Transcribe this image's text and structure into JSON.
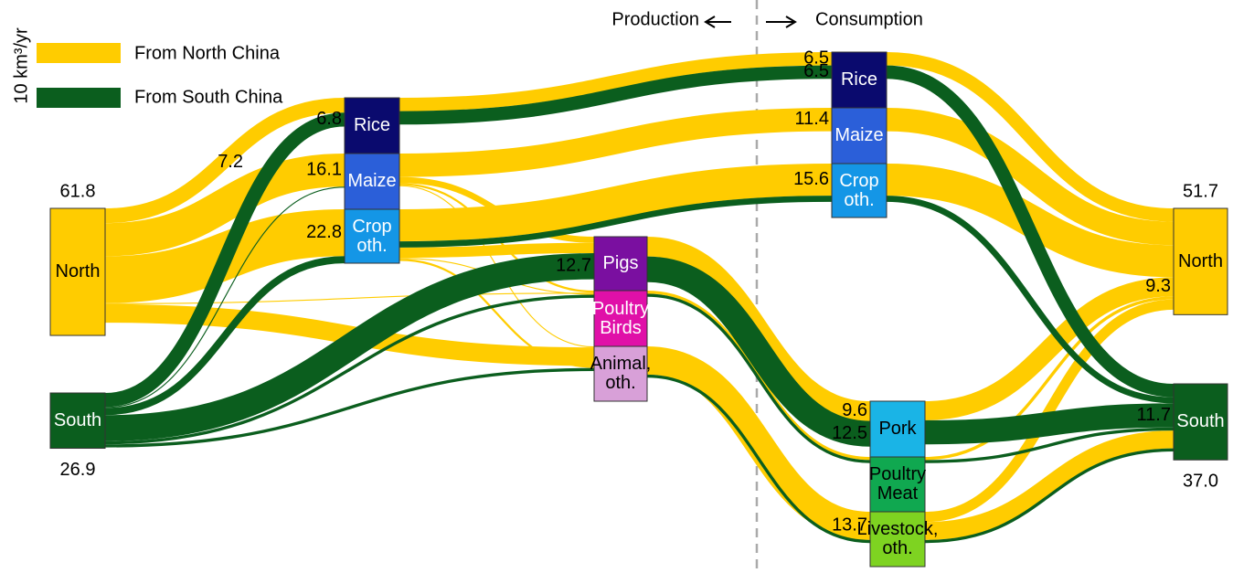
{
  "chart_data": {
    "type": "sankey",
    "unit_label": "10 km³/yr",
    "annotations": [
      "Production",
      "Consumption"
    ],
    "series": [
      {
        "name": "From North China",
        "color": "#ffcc00"
      },
      {
        "name": "From South China",
        "color": "#0b5e1e"
      }
    ],
    "nodes": [
      {
        "name": "North",
        "color": "#ffcc00",
        "value": 61.8
      },
      {
        "name": "South",
        "color": "#0b5e1e",
        "value": 26.9
      },
      {
        "name": "Rice",
        "color": "#0a0a6e"
      },
      {
        "name": "Maize",
        "color": "#2b5fd9"
      },
      {
        "name": "Crop oth.",
        "color": "#1496e6"
      },
      {
        "name": "Pigs",
        "color": "#7a0fa0"
      },
      {
        "name": "Poultry Birds",
        "color": "#e010a8"
      },
      {
        "name": "Animal, oth.",
        "color": "#d8a0d8"
      },
      {
        "name": "Rice",
        "color": "#0a0a6e"
      },
      {
        "name": "Maize",
        "color": "#2b5fd9"
      },
      {
        "name": "Crop oth.",
        "color": "#1496e6"
      },
      {
        "name": "Pork",
        "color": "#1ab4e6"
      },
      {
        "name": "Poultry Meat",
        "color": "#10a850"
      },
      {
        "name": "Livestock, oth.",
        "color": "#7ed321"
      },
      {
        "name": "North",
        "color": "#ffcc00",
        "value": 51.7
      },
      {
        "name": "South",
        "color": "#0b5e1e",
        "value": 37,
        "value_label": "37.0"
      }
    ],
    "links": [
      {
        "source": 0,
        "target": 2,
        "series": 0,
        "value": 7.2,
        "labeled": true
      },
      {
        "source": 1,
        "target": 2,
        "series": 1,
        "value": 6.8,
        "labeled": true
      },
      {
        "source": 0,
        "target": 3,
        "series": 0,
        "value": 16.1,
        "labeled": true
      },
      {
        "source": 1,
        "target": 3,
        "series": 1,
        "value": 0.5
      },
      {
        "source": 0,
        "target": 4,
        "series": 0,
        "value": 22.8,
        "labeled": true
      },
      {
        "source": 1,
        "target": 4,
        "series": 1,
        "value": 3.5
      },
      {
        "source": 1,
        "target": 5,
        "series": 1,
        "value": 12.7,
        "labeled": true
      },
      {
        "source": 0,
        "target": 6,
        "series": 0,
        "value": 0.5
      },
      {
        "source": 1,
        "target": 6,
        "series": 1,
        "value": 1.5
      },
      {
        "source": 0,
        "target": 7,
        "series": 0,
        "value": 9
      },
      {
        "source": 1,
        "target": 7,
        "series": 1,
        "value": 1.5
      },
      {
        "source": 3,
        "target": 5,
        "series": 0,
        "value": 3
      },
      {
        "source": 3,
        "target": 6,
        "series": 0,
        "value": 1
      },
      {
        "source": 3,
        "target": 7,
        "series": 0,
        "value": 0.5
      },
      {
        "source": 4,
        "target": 5,
        "series": 0,
        "value": 5
      },
      {
        "source": 4,
        "target": 6,
        "series": 0,
        "value": 0.5
      },
      {
        "source": 4,
        "target": 7,
        "series": 0,
        "value": 1
      },
      {
        "source": 2,
        "target": 8,
        "series": 0,
        "value": 6.5,
        "labeled": true
      },
      {
        "source": 2,
        "target": 8,
        "series": 1,
        "value": 6.5,
        "labeled": true
      },
      {
        "source": 3,
        "target": 9,
        "series": 0,
        "value": 11.4,
        "labeled": true
      },
      {
        "source": 4,
        "target": 10,
        "series": 0,
        "value": 15.6,
        "labeled": true
      },
      {
        "source": 4,
        "target": 10,
        "series": 1,
        "value": 3
      },
      {
        "source": 5,
        "target": 11,
        "series": 0,
        "value": 9.6,
        "labeled": true
      },
      {
        "source": 5,
        "target": 11,
        "series": 1,
        "value": 12.5,
        "labeled": true
      },
      {
        "source": 6,
        "target": 12,
        "series": 0,
        "value": 1.5
      },
      {
        "source": 6,
        "target": 12,
        "series": 1,
        "value": 1.5
      },
      {
        "source": 7,
        "target": 13,
        "series": 0,
        "value": 13.7,
        "labeled": true
      },
      {
        "source": 7,
        "target": 13,
        "series": 1,
        "value": 1.5
      },
      {
        "source": 8,
        "target": 14,
        "series": 0,
        "value": 6.5
      },
      {
        "source": 8,
        "target": 15,
        "series": 1,
        "value": 6.5
      },
      {
        "source": 9,
        "target": 14,
        "series": 0,
        "value": 11.4
      },
      {
        "source": 10,
        "target": 14,
        "series": 0,
        "value": 15.6
      },
      {
        "source": 10,
        "target": 15,
        "series": 1,
        "value": 3
      },
      {
        "source": 11,
        "target": 14,
        "series": 0,
        "value": 9.3,
        "labeled": true
      },
      {
        "source": 11,
        "target": 15,
        "series": 1,
        "value": 11.7,
        "labeled": true
      },
      {
        "source": 12,
        "target": 14,
        "series": 0,
        "value": 1.5
      },
      {
        "source": 12,
        "target": 15,
        "series": 1,
        "value": 1.5
      },
      {
        "source": 13,
        "target": 14,
        "series": 0,
        "value": 5
      },
      {
        "source": 13,
        "target": 15,
        "series": 0,
        "value": 8.7
      },
      {
        "source": 13,
        "target": 15,
        "series": 1,
        "value": 1.5
      }
    ]
  }
}
